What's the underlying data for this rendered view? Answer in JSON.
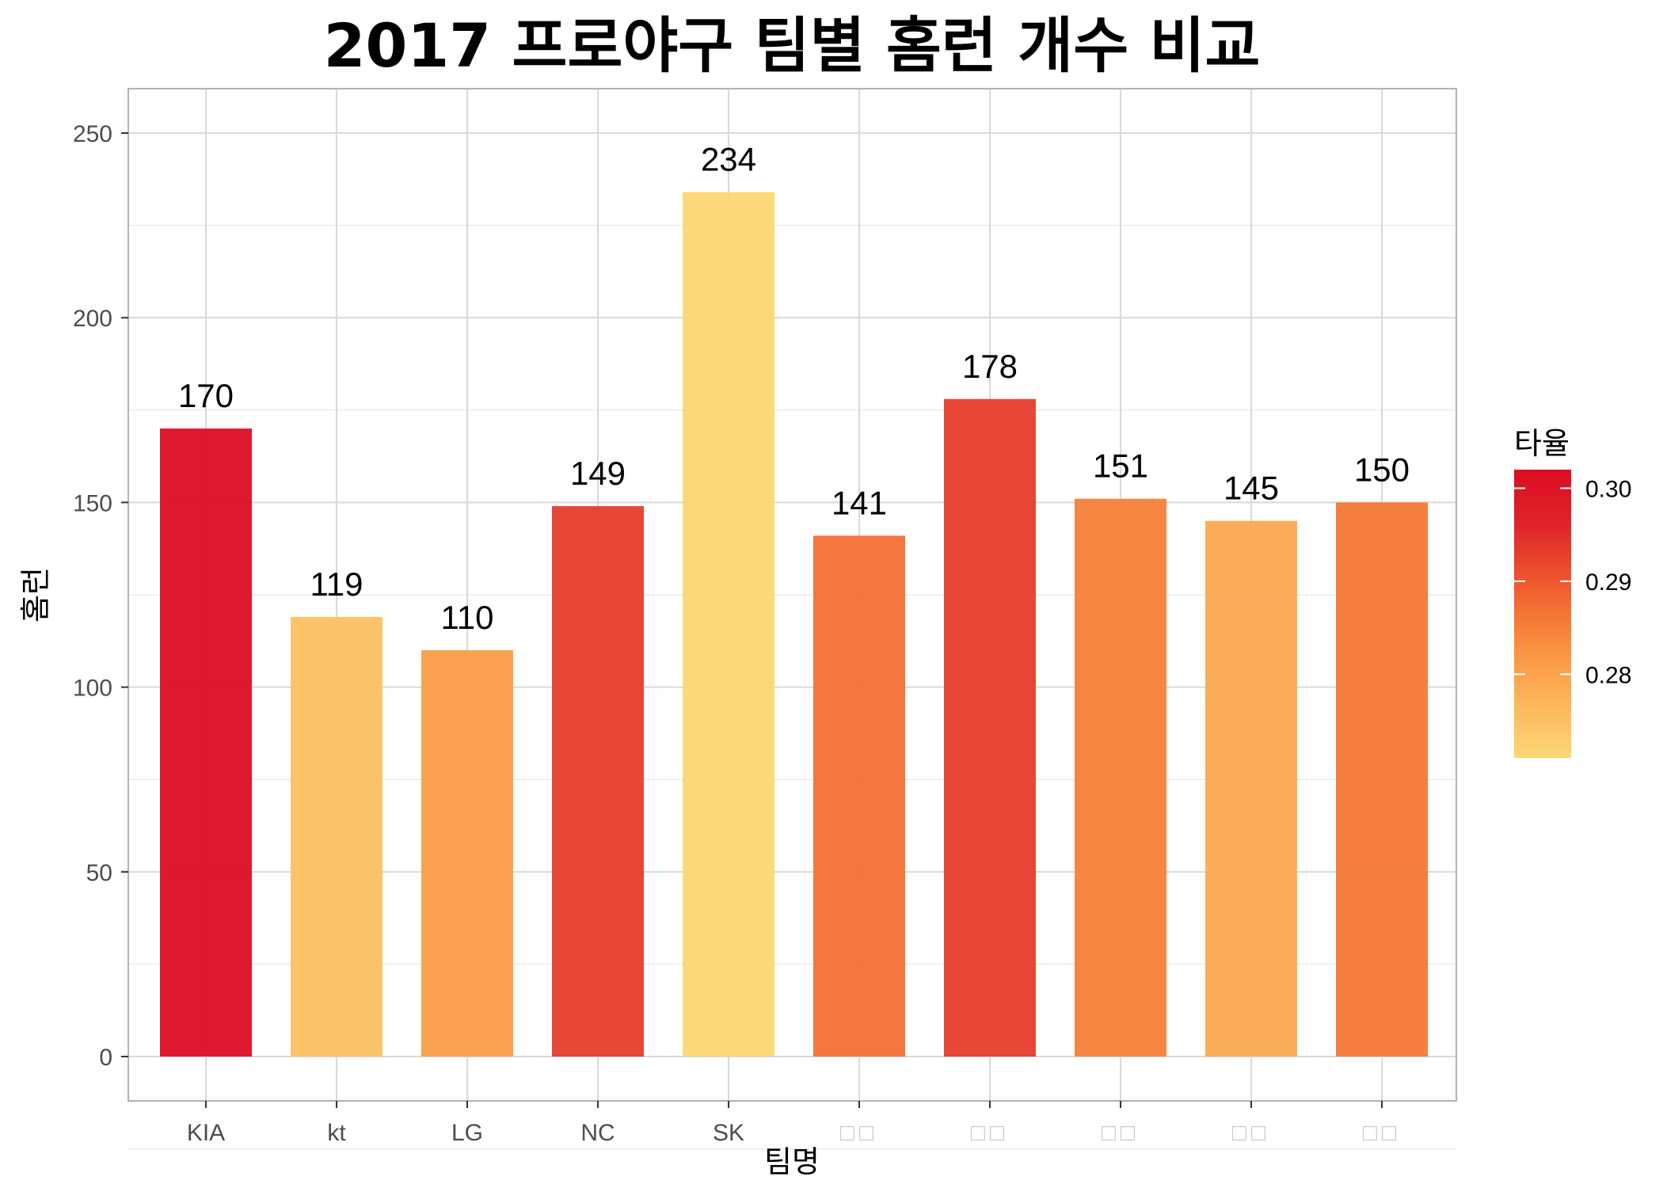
{
  "chart_data": {
    "type": "bar",
    "title": "2017 프로야구 팀별 홈런 개수 비교",
    "xlabel": "팀명",
    "ylabel": "홈런",
    "categories": [
      "KIA",
      "kt",
      "LG",
      "NC",
      "SK",
      "□□",
      "□□",
      "□□",
      "□□",
      "□□"
    ],
    "values": [
      170,
      119,
      110,
      149,
      234,
      141,
      178,
      151,
      145,
      150
    ],
    "color_values": [
      0.302,
      0.275,
      0.281,
      0.293,
      0.271,
      0.287,
      0.293,
      0.285,
      0.279,
      0.286
    ],
    "ylim": [
      -12,
      262
    ],
    "yticks": [
      0,
      50,
      100,
      150,
      200,
      250
    ],
    "grid": true,
    "legend": {
      "title": "타율",
      "position": "right",
      "range": [
        0.271,
        0.302
      ],
      "ticks": [
        0.28,
        0.29,
        0.3
      ],
      "tick_labels": [
        "0.28",
        "0.29",
        "0.30"
      ],
      "colors": [
        "#FDD774",
        "#FDB45A",
        "#F98E3C",
        "#EF5A2E",
        "#E0262A",
        "#DC0C23"
      ]
    }
  }
}
